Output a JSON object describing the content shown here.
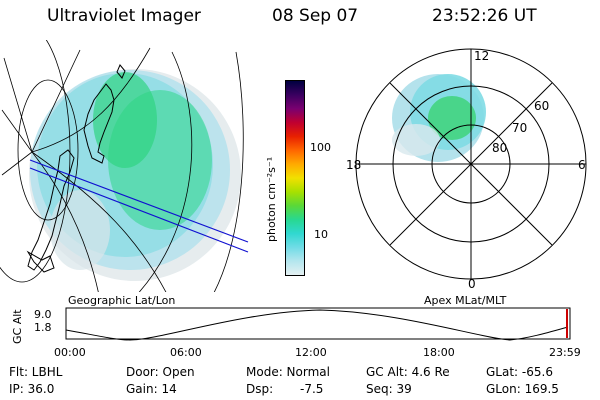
{
  "header": {
    "title": "Ultraviolet Imager",
    "date": "08 Sep 07",
    "time": "23:52:26 UT"
  },
  "colorbar": {
    "unit_label": "photon cm⁻²s⁻¹",
    "ticks": [
      "100",
      "10"
    ],
    "colors": [
      "#000040",
      "#3a0060",
      "#7a0070",
      "#c00030",
      "#e82000",
      "#ff6600",
      "#ffaa00",
      "#f2e000",
      "#a8e000",
      "#5ad838",
      "#28d890",
      "#30d8d0",
      "#70dce6",
      "#b4e6ee",
      "#e4f0f2"
    ]
  },
  "map": {
    "label": "Geographic Lat/Lon"
  },
  "polar": {
    "label": "Apex MLat/MLT",
    "mlt_labels": [
      "12",
      "18",
      "6",
      "0"
    ],
    "lat_labels": [
      "60",
      "70",
      "80"
    ]
  },
  "timeline": {
    "ylabel": "GC Alt",
    "yticks": [
      "9.0",
      "1.8"
    ],
    "xticks": [
      "00:00",
      "06:00",
      "12:00",
      "18:00",
      "23:59"
    ]
  },
  "info": {
    "flt": "Flt: LBHL",
    "door": "Door: Open",
    "mode": "Mode: Normal",
    "gc_alt": "GC Alt: 4.6 Re",
    "glat": "GLat: -65.6",
    "ip": "IP: 36.0",
    "gain": "Gain: 14",
    "dsp_label": "Dsp:",
    "dsp_value": "-7.5",
    "seq": "Seq: 39",
    "glon": "GLon: 169.5"
  }
}
